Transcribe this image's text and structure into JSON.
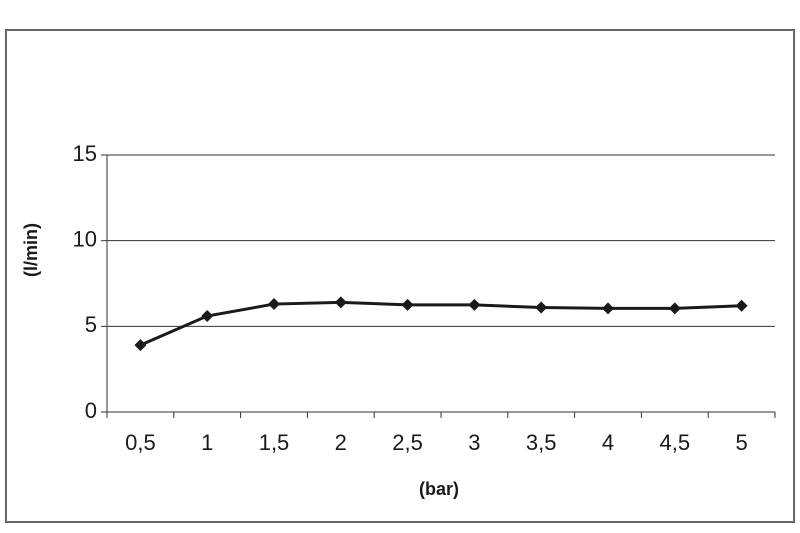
{
  "chart_data": {
    "type": "line",
    "categories": [
      "0,5",
      "1",
      "1,5",
      "2",
      "2,5",
      "3",
      "3,5",
      "4",
      "4,5",
      "5"
    ],
    "series": [
      {
        "color": "#1a1a1a",
        "values": [
          3.9,
          5.6,
          6.3,
          6.4,
          6.25,
          6.25,
          6.1,
          6.05,
          6.05,
          6.2
        ]
      }
    ],
    "ylim": [
      0,
      15
    ],
    "yticks": [
      0,
      5,
      10,
      15
    ],
    "grid": true,
    "ylabel": "(l/min)",
    "xlabel": "(bar)"
  }
}
